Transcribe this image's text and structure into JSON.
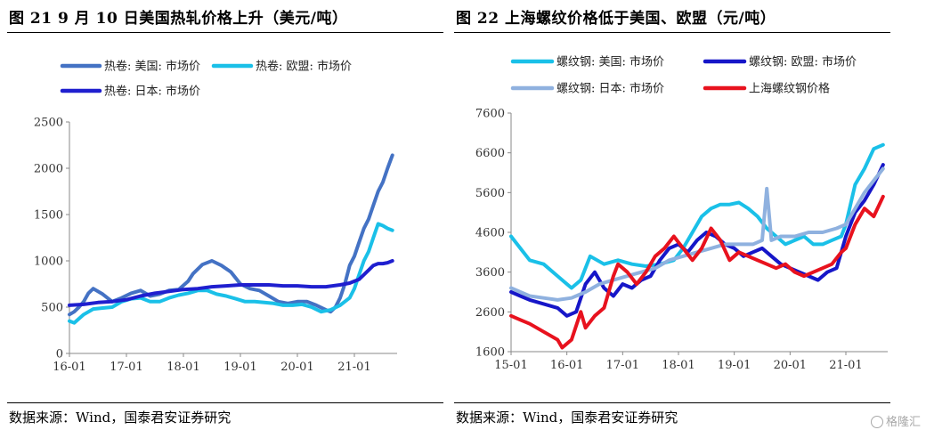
{
  "left": {
    "title": "图 21   9 月 10 日美国热轧价格上升（美元/吨）",
    "source": "数据来源：Wind，国泰君安证券研究"
  },
  "right": {
    "title": "图 22  上海螺纹价格低于美国、欧盟（元/吨）",
    "source": "数据来源：Wind，国泰君安证券研究"
  },
  "watermark": "格隆汇",
  "colors": {
    "hr_us": "#4472c4",
    "hr_eu": "#1ac0e8",
    "hr_jp": "#1f1fcf",
    "rb_us": "#1ac0e8",
    "rb_eu": "#1616c8",
    "rb_jp": "#8fb1df",
    "rb_sh": "#e8121e"
  },
  "chart_data": [
    {
      "type": "line",
      "ylim": [
        0,
        2500
      ],
      "yticks": [
        0,
        500,
        1000,
        1500,
        2000,
        2500
      ],
      "xlim": [
        "2016-01",
        "2021-10"
      ],
      "xticks": [
        "16-01",
        "17-01",
        "18-01",
        "19-01",
        "20-01",
        "21-01"
      ],
      "legend_position": "top-left",
      "series": [
        {
          "name": "热卷: 美国: 市场价",
          "color_key": "hr_us",
          "x": [
            "2016-01",
            "2016-02",
            "2016-03",
            "2016-04",
            "2016-05",
            "2016-06",
            "2016-08",
            "2016-10",
            "2016-12",
            "2017-02",
            "2017-04",
            "2017-06",
            "2017-08",
            "2017-10",
            "2017-12",
            "2018-02",
            "2018-03",
            "2018-05",
            "2018-07",
            "2018-09",
            "2018-11",
            "2019-01",
            "2019-03",
            "2019-05",
            "2019-07",
            "2019-09",
            "2019-11",
            "2020-01",
            "2020-03",
            "2020-05",
            "2020-07",
            "2020-08",
            "2020-09",
            "2020-10",
            "2020-11",
            "2020-12",
            "2021-01",
            "2021-02",
            "2021-03",
            "2021-04",
            "2021-05",
            "2021-06",
            "2021-07",
            "2021-08",
            "2021-09"
          ],
          "y": [
            420,
            450,
            500,
            560,
            650,
            700,
            640,
            560,
            600,
            650,
            680,
            620,
            640,
            680,
            690,
            780,
            860,
            960,
            1000,
            950,
            880,
            750,
            700,
            680,
            620,
            560,
            540,
            560,
            560,
            520,
            470,
            450,
            500,
            600,
            750,
            950,
            1050,
            1200,
            1350,
            1450,
            1600,
            1750,
            1850,
            2000,
            2140
          ]
        },
        {
          "name": "热卷: 欧盟: 市场价",
          "color_key": "hr_eu",
          "x": [
            "2016-01",
            "2016-02",
            "2016-04",
            "2016-06",
            "2016-08",
            "2016-10",
            "2016-12",
            "2017-02",
            "2017-04",
            "2017-06",
            "2017-08",
            "2017-10",
            "2017-12",
            "2018-02",
            "2018-04",
            "2018-06",
            "2018-08",
            "2018-10",
            "2018-12",
            "2019-02",
            "2019-04",
            "2019-06",
            "2019-08",
            "2019-10",
            "2019-12",
            "2020-02",
            "2020-04",
            "2020-06",
            "2020-08",
            "2020-10",
            "2020-12",
            "2021-01",
            "2021-02",
            "2021-03",
            "2021-04",
            "2021-05",
            "2021-06",
            "2021-07",
            "2021-08",
            "2021-09"
          ],
          "y": [
            350,
            330,
            420,
            480,
            490,
            500,
            560,
            590,
            600,
            560,
            560,
            600,
            630,
            650,
            680,
            680,
            640,
            620,
            590,
            560,
            560,
            550,
            540,
            520,
            520,
            530,
            500,
            450,
            470,
            520,
            600,
            700,
            850,
            1000,
            1100,
            1250,
            1400,
            1380,
            1350,
            1330
          ]
        },
        {
          "name": "热卷: 日本: 市场价",
          "color_key": "hr_jp",
          "x": [
            "2016-01",
            "2016-04",
            "2016-07",
            "2016-10",
            "2017-01",
            "2017-04",
            "2017-07",
            "2017-10",
            "2018-01",
            "2018-04",
            "2018-07",
            "2018-10",
            "2019-01",
            "2019-04",
            "2019-07",
            "2019-10",
            "2020-01",
            "2020-04",
            "2020-07",
            "2020-10",
            "2020-12",
            "2021-01",
            "2021-02",
            "2021-03",
            "2021-04",
            "2021-05",
            "2021-06",
            "2021-07",
            "2021-08",
            "2021-09"
          ],
          "y": [
            520,
            530,
            550,
            560,
            580,
            620,
            650,
            670,
            690,
            700,
            720,
            730,
            740,
            740,
            740,
            730,
            730,
            720,
            720,
            740,
            760,
            780,
            800,
            850,
            900,
            950,
            970,
            970,
            980,
            1000
          ]
        }
      ]
    },
    {
      "type": "line",
      "ylim": [
        1600,
        7600
      ],
      "yticks": [
        1600,
        2600,
        3600,
        4600,
        5600,
        6600,
        7600
      ],
      "xlim": [
        "2015-01",
        "2021-10"
      ],
      "xticks": [
        "15-01",
        "16-01",
        "17-01",
        "18-01",
        "19-01",
        "20-01",
        "21-01"
      ],
      "legend_position": "top",
      "series": [
        {
          "name": "螺纹钢: 美国: 市场价",
          "color_key": "rb_us",
          "x": [
            "2015-01",
            "2015-03",
            "2015-05",
            "2015-08",
            "2015-11",
            "2016-02",
            "2016-04",
            "2016-06",
            "2016-09",
            "2016-12",
            "2017-03",
            "2017-06",
            "2017-09",
            "2017-12",
            "2018-02",
            "2018-04",
            "2018-06",
            "2018-08",
            "2018-10",
            "2018-12",
            "2019-02",
            "2019-04",
            "2019-06",
            "2019-08",
            "2019-10",
            "2019-12",
            "2020-02",
            "2020-04",
            "2020-06",
            "2020-08",
            "2020-10",
            "2020-12",
            "2021-01",
            "2021-03",
            "2021-05",
            "2021-07",
            "2021-09"
          ],
          "y": [
            4500,
            4200,
            3900,
            3800,
            3500,
            3200,
            3400,
            4000,
            3800,
            3900,
            3800,
            3750,
            3800,
            3900,
            4200,
            4600,
            5000,
            5200,
            5300,
            5300,
            5350,
            5200,
            5000,
            4700,
            4500,
            4300,
            4400,
            4500,
            4300,
            4300,
            4400,
            4500,
            4800,
            5800,
            6200,
            6700,
            6800
          ]
        },
        {
          "name": "螺纹钢: 欧盟: 市场价",
          "color_key": "rb_eu",
          "x": [
            "2015-01",
            "2015-03",
            "2015-05",
            "2015-08",
            "2015-11",
            "2016-01",
            "2016-03",
            "2016-05",
            "2016-07",
            "2016-09",
            "2016-11",
            "2017-01",
            "2017-03",
            "2017-05",
            "2017-07",
            "2017-09",
            "2017-11",
            "2018-01",
            "2018-03",
            "2018-05",
            "2018-07",
            "2018-09",
            "2018-11",
            "2019-01",
            "2019-03",
            "2019-05",
            "2019-07",
            "2019-09",
            "2019-11",
            "2020-01",
            "2020-03",
            "2020-05",
            "2020-07",
            "2020-09",
            "2020-11",
            "2021-01",
            "2021-03",
            "2021-05",
            "2021-07",
            "2021-09"
          ],
          "y": [
            3100,
            3000,
            2900,
            2800,
            2700,
            2500,
            2600,
            3300,
            3600,
            3200,
            3000,
            3300,
            3200,
            3400,
            3500,
            3900,
            4200,
            4300,
            4100,
            4400,
            4600,
            4500,
            4300,
            4200,
            4000,
            4100,
            4200,
            4000,
            3800,
            3700,
            3600,
            3500,
            3400,
            3600,
            3700,
            4500,
            5100,
            5400,
            5800,
            6300
          ]
        },
        {
          "name": "螺纹钢: 日本: 市场价",
          "color_key": "rb_jp",
          "x": [
            "2015-01",
            "2015-03",
            "2015-05",
            "2015-08",
            "2015-11",
            "2016-02",
            "2016-05",
            "2016-08",
            "2016-11",
            "2017-02",
            "2017-05",
            "2017-08",
            "2017-11",
            "2018-02",
            "2018-05",
            "2018-08",
            "2018-11",
            "2019-02",
            "2019-05",
            "2019-07",
            "2019-08",
            "2019-09",
            "2019-11",
            "2020-02",
            "2020-05",
            "2020-08",
            "2020-11",
            "2021-01",
            "2021-03",
            "2021-05",
            "2021-07",
            "2021-09"
          ],
          "y": [
            3200,
            3100,
            3000,
            2950,
            2900,
            2950,
            3100,
            3300,
            3400,
            3500,
            3600,
            3700,
            3900,
            4000,
            4100,
            4200,
            4300,
            4300,
            4300,
            4400,
            5700,
            4400,
            4500,
            4500,
            4600,
            4600,
            4700,
            4800,
            5200,
            5600,
            5900,
            6200
          ]
        },
        {
          "name": "上海螺纹钢价格",
          "color_key": "rb_sh",
          "x": [
            "2015-01",
            "2015-03",
            "2015-05",
            "2015-08",
            "2015-11",
            "2015-12",
            "2016-02",
            "2016-04",
            "2016-05",
            "2016-07",
            "2016-09",
            "2016-11",
            "2016-12",
            "2017-02",
            "2017-04",
            "2017-06",
            "2017-08",
            "2017-10",
            "2017-12",
            "2018-02",
            "2018-04",
            "2018-06",
            "2018-08",
            "2018-10",
            "2018-12",
            "2019-02",
            "2019-04",
            "2019-06",
            "2019-08",
            "2019-10",
            "2019-12",
            "2020-02",
            "2020-04",
            "2020-06",
            "2020-08",
            "2020-10",
            "2020-12",
            "2021-01",
            "2021-03",
            "2021-05",
            "2021-07",
            "2021-09"
          ],
          "y": [
            2500,
            2400,
            2300,
            2100,
            1900,
            1700,
            1900,
            2600,
            2200,
            2500,
            2700,
            3500,
            3800,
            3600,
            3300,
            3600,
            4000,
            4200,
            4500,
            4200,
            3900,
            4200,
            4700,
            4400,
            3900,
            4100,
            4000,
            3900,
            3800,
            3700,
            3800,
            3600,
            3500,
            3600,
            3700,
            3800,
            4100,
            4200,
            4800,
            5200,
            5000,
            5500
          ]
        }
      ]
    }
  ]
}
